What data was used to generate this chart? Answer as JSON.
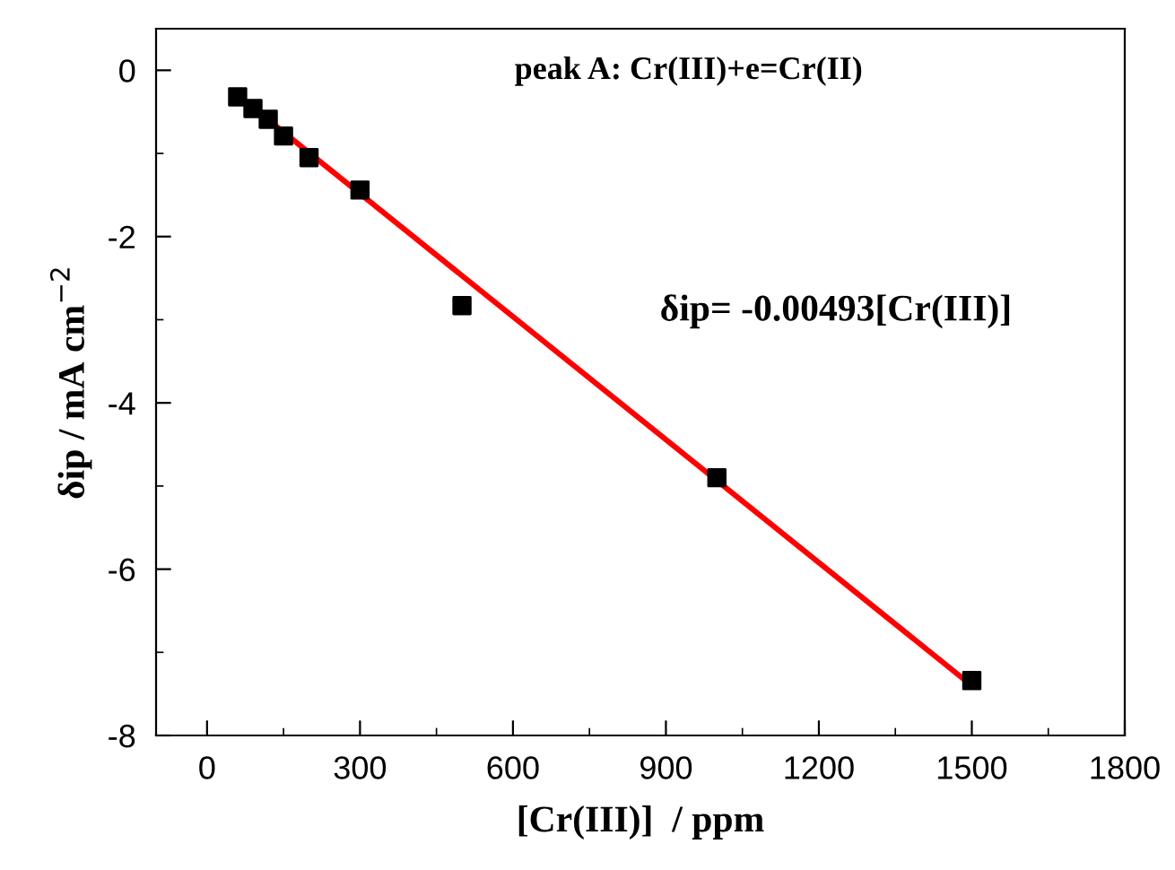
{
  "chart_data": {
    "type": "scatter",
    "xlabel": "[Cr(III)]  / ppm",
    "ylabel": "δip / mA cm$^{−2}$",
    "x": [
      60,
      90,
      120,
      150,
      200,
      300,
      500,
      1000,
      1500
    ],
    "series": [
      {
        "color": "#000000",
        "marker": "square",
        "values": [
          -0.32,
          -0.46,
          -0.59,
          -0.79,
          -1.05,
          -1.44,
          -2.83,
          -4.9,
          -7.34
        ]
      },
      {
        "type": "line",
        "color": "#ff0000",
        "marker": "none",
        "line_style": "solid",
        "x": [
          60,
          1500
        ],
        "values": [
          -0.3,
          -7.4
        ]
      }
    ],
    "xlim": [
      -100,
      1800
    ],
    "ylim": [
      -8,
      0.5
    ],
    "xticks": [
      0,
      {
        "value": 150,
        "label": null
      },
      300,
      {
        "value": 450,
        "label": null
      },
      600,
      {
        "value": 750,
        "label": null
      },
      900,
      {
        "value": 1050,
        "label": null
      },
      1200,
      {
        "value": 1350,
        "label": null
      },
      1500,
      {
        "value": 1650,
        "label": null
      },
      1800
    ],
    "yticks": [
      -8,
      {
        "value": -7,
        "label": null
      },
      -6,
      {
        "value": -5,
        "label": null
      },
      -4,
      {
        "value": -3,
        "label": null
      },
      -2,
      {
        "value": -1,
        "label": null
      },
      0
    ],
    "grid": false,
    "legend": false,
    "annotations": [
      "peak A: Cr(III)+e=Cr(II)",
      "δip= -0.00493[Cr(III)]"
    ]
  }
}
